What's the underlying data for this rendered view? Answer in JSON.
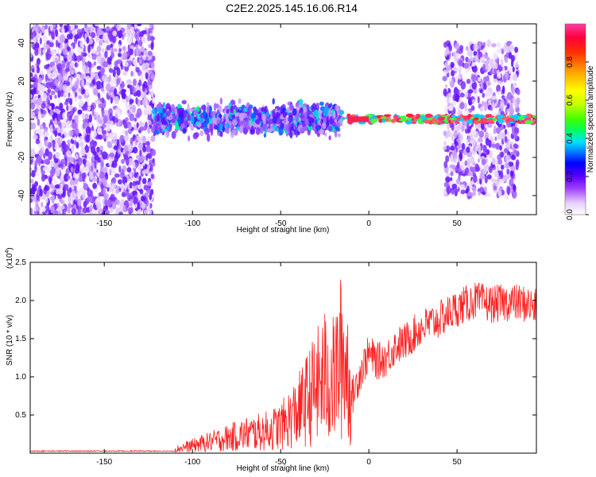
{
  "page": {
    "title": "C2E2.2025.145.16.06.R14"
  },
  "chart_data": [
    {
      "type": "heatmap",
      "title": "C2E2.2025.145.16.06.R14",
      "xlabel": "Height of straight line (km)",
      "ylabel": "Frequency (Hz)",
      "xlim": [
        -192,
        95
      ],
      "ylim": [
        -50,
        50
      ],
      "x_ticks": [
        "-150",
        "-100",
        "-50",
        "0",
        "50"
      ],
      "y_ticks": [
        "-40",
        "-20",
        "0",
        "20",
        "40"
      ],
      "colorbar": {
        "label": "Normalized spectral amplitude",
        "range": [
          0,
          1
        ],
        "ticks": [
          "0.0",
          "0.2",
          "0.4",
          "0.6",
          "0.8"
        ],
        "colors": [
          "#ffffff",
          "#e8d0ff",
          "#9b3cff",
          "#5a00ff",
          "#0000ff",
          "#0080ff",
          "#00e0ff",
          "#00ff60",
          "#40ff00",
          "#c8ff00",
          "#ffff00",
          "#ffa000",
          "#ff3000",
          "#ff0040",
          "#ff40a0"
        ]
      },
      "regions": [
        {
          "x_range": [
            -192,
            -122
          ],
          "freq_spread": 50,
          "level": "low"
        },
        {
          "x_range": [
            -122,
            -15
          ],
          "freq_spread": 8,
          "level": "medium"
        },
        {
          "x_range": [
            -12,
            95
          ],
          "freq_spread": 2,
          "level": "high"
        },
        {
          "x_range": [
            43,
            85
          ],
          "freq_spread": 40,
          "level": "low"
        }
      ]
    },
    {
      "type": "line",
      "xlabel": "Height of straight line (km)",
      "ylabel": "SNR (10 * v/v)",
      "y_multiplier": "(x10",
      "y_multiplier_exp": "4",
      "xlim": [
        -192,
        95
      ],
      "ylim": [
        0,
        2.5
      ],
      "x_ticks": [
        "-150",
        "-100",
        "-50",
        "0",
        "50"
      ],
      "y_ticks": [
        "0.5",
        "1.0",
        "1.5",
        "2.0",
        "2.5"
      ],
      "color": "#ff2020",
      "series": [
        {
          "x": [
            -190,
            -160,
            -130,
            -120,
            -110,
            -100,
            -90,
            -80,
            -70,
            -60,
            -50,
            -40,
            -30,
            -25,
            -20,
            -15,
            -12,
            -10,
            -5,
            0,
            5,
            10,
            15,
            20,
            25,
            30,
            40,
            50,
            60,
            70,
            80,
            90,
            95
          ],
          "y": [
            0.02,
            0.02,
            0.02,
            0.03,
            0.05,
            0.1,
            0.15,
            0.2,
            0.25,
            0.28,
            0.35,
            0.55,
            0.85,
            1.0,
            0.95,
            1.3,
            1.1,
            0.7,
            1.05,
            1.3,
            1.2,
            1.25,
            1.4,
            1.45,
            1.55,
            1.65,
            1.75,
            1.9,
            2.0,
            1.95,
            1.98,
            1.95,
            1.9
          ]
        }
      ]
    }
  ]
}
